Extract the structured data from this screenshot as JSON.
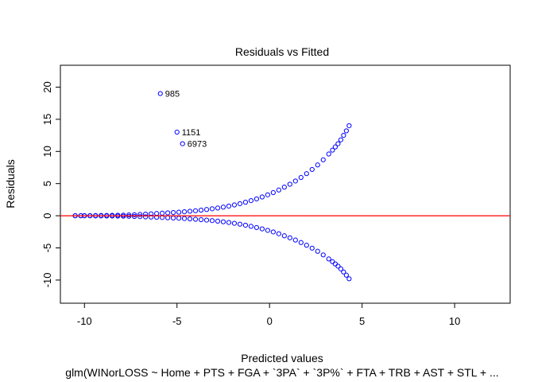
{
  "chart_data": {
    "type": "scatter",
    "title": "Residuals vs Fitted",
    "xlabel": "Predicted values",
    "ylabel": "Residuals",
    "subtitle": "glm(WINorLOSS ~ Home + PTS + FGA + `3PA` + `3P%` + FTA + TRB + AST + STL +  ...",
    "xlim": [
      -11.3,
      13.0
    ],
    "ylim": [
      -13.6,
      23.4
    ],
    "x_ticks": [
      -10,
      -5,
      0,
      5,
      10
    ],
    "y_ticks": [
      -10,
      -5,
      0,
      5,
      10,
      15,
      20
    ],
    "grid": false,
    "reference_line": {
      "y": 0,
      "style": "dotted",
      "color": "#bbbbbb"
    },
    "smooth_line": {
      "color": "#ff0000"
    },
    "point_color": "#0000ff",
    "labeled_points": [
      {
        "label": "985",
        "x": -5.9,
        "y": 19.0
      },
      {
        "label": "1151",
        "x": -5.0,
        "y": 13.0
      },
      {
        "label": "6973",
        "x": -4.7,
        "y": 11.2
      }
    ],
    "series": [
      {
        "points": [
          [
            -10.5,
            0.01
          ],
          [
            -10.2,
            0.01
          ],
          [
            -10.0,
            0.02
          ],
          [
            -9.7,
            0.02
          ],
          [
            -9.4,
            0.03
          ],
          [
            -9.1,
            0.04
          ],
          [
            -8.8,
            0.05
          ],
          [
            -8.5,
            0.06
          ],
          [
            -8.2,
            0.08
          ],
          [
            -7.9,
            0.1
          ],
          [
            -7.6,
            0.13
          ],
          [
            -7.3,
            0.16
          ],
          [
            -7.0,
            0.2
          ],
          [
            -6.7,
            0.25
          ],
          [
            -6.4,
            0.3
          ],
          [
            -6.1,
            0.35
          ],
          [
            -5.8,
            0.4
          ],
          [
            -5.5,
            0.45
          ],
          [
            -5.2,
            0.5
          ],
          [
            -4.9,
            0.55
          ],
          [
            -4.6,
            0.62
          ],
          [
            -4.3,
            0.7
          ],
          [
            -4.0,
            0.78
          ],
          [
            -3.7,
            0.87
          ],
          [
            -3.4,
            0.97
          ],
          [
            -3.1,
            1.08
          ],
          [
            -2.8,
            1.2
          ],
          [
            -2.5,
            1.34
          ],
          [
            -2.2,
            1.5
          ],
          [
            -1.9,
            1.68
          ],
          [
            -1.6,
            1.87
          ],
          [
            -1.3,
            2.1
          ],
          [
            -1.0,
            2.35
          ],
          [
            -0.7,
            2.62
          ],
          [
            -0.4,
            2.92
          ],
          [
            -0.1,
            3.25
          ],
          [
            0.2,
            3.6
          ],
          [
            0.5,
            4.0
          ],
          [
            0.8,
            4.45
          ],
          [
            1.1,
            4.9
          ],
          [
            1.4,
            5.4
          ],
          [
            1.7,
            5.95
          ],
          [
            2.0,
            6.55
          ],
          [
            2.3,
            7.2
          ],
          [
            2.6,
            7.9
          ],
          [
            2.9,
            8.7
          ],
          [
            3.2,
            9.6
          ],
          [
            3.4,
            10.2
          ],
          [
            3.55,
            10.7
          ],
          [
            3.7,
            11.2
          ],
          [
            3.85,
            11.8
          ],
          [
            4.0,
            12.5
          ],
          [
            4.15,
            13.2
          ],
          [
            4.3,
            14.0
          ]
        ]
      }
    ]
  }
}
